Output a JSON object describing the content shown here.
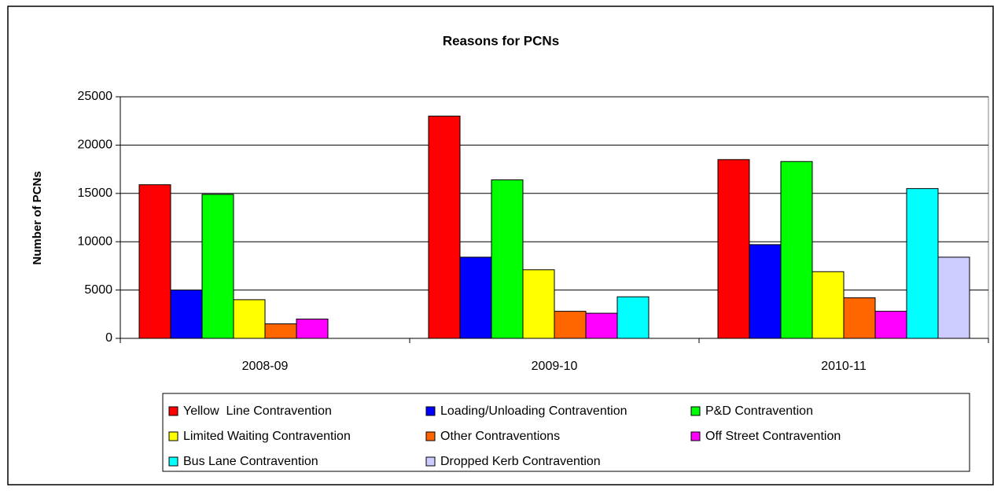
{
  "chart_data": {
    "type": "bar",
    "title": "Reasons for PCNs",
    "y_label": "Number of PCNs",
    "categories": [
      "2008-09",
      "2009-10",
      "2010-11"
    ],
    "series": [
      {
        "name": "Yellow  Line Contravention",
        "color": "#ff0000",
        "values": [
          15900,
          23000,
          18500
        ]
      },
      {
        "name": "Loading/Unloading Contravention",
        "color": "#0000ff",
        "values": [
          5000,
          8400,
          9700
        ]
      },
      {
        "name": "P&D Contravention",
        "color": "#00ff00",
        "values": [
          14900,
          16400,
          18300
        ]
      },
      {
        "name": "Limited Waiting Contravention",
        "color": "#ffff00",
        "values": [
          4000,
          7100,
          6900
        ]
      },
      {
        "name": "Other Contraventions",
        "color": "#ff6600",
        "values": [
          1500,
          2800,
          4200
        ]
      },
      {
        "name": "Off Street Contravention",
        "color": "#ff00ff",
        "values": [
          2000,
          2600,
          2800
        ]
      },
      {
        "name": "Bus Lane Contravention",
        "color": "#00ffff",
        "values": [
          null,
          4300,
          15500
        ]
      },
      {
        "name": "Dropped Kerb Contravention",
        "color": "#ccccff",
        "values": [
          null,
          null,
          8400
        ]
      }
    ],
    "ylim": [
      0,
      25000
    ],
    "yticks": [
      0,
      5000,
      10000,
      15000,
      20000,
      25000
    ],
    "grid": true
  }
}
